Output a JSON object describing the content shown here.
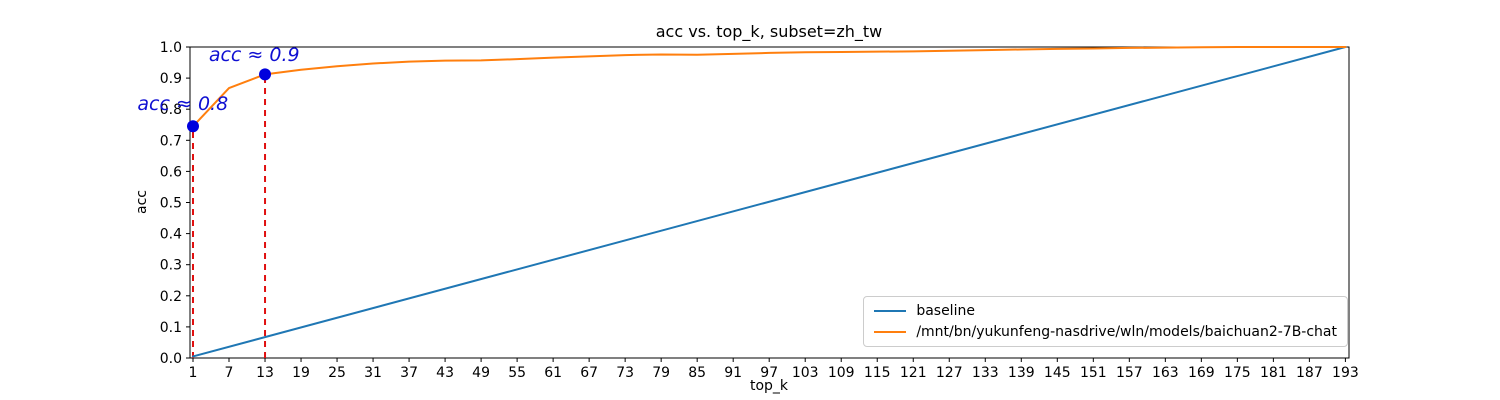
{
  "chart_data": {
    "type": "line",
    "title": "acc vs. top_k, subset=zh_tw",
    "xlabel": "top_k",
    "ylabel": "acc",
    "xlim": [
      0.5,
      193.6
    ],
    "ylim": [
      0.0,
      1.0
    ],
    "grid": false,
    "legend_position": "lower right",
    "xticks": [
      1,
      7,
      13,
      19,
      25,
      31,
      37,
      43,
      49,
      55,
      61,
      67,
      73,
      79,
      85,
      91,
      97,
      103,
      109,
      115,
      121,
      127,
      133,
      139,
      145,
      151,
      157,
      163,
      169,
      175,
      181,
      187,
      193
    ],
    "yticks": [
      0.0,
      0.1,
      0.2,
      0.3,
      0.4,
      0.5,
      0.6,
      0.7,
      0.8,
      0.9,
      1.0
    ],
    "series": [
      {
        "name": "baseline",
        "color": "#1f77b4",
        "x": [
          1,
          193
        ],
        "y": [
          0.005,
          1.0
        ]
      },
      {
        "name": "/mnt/bn/yukunfeng-nasdrive/wln/models/baichuan2-7B-chat",
        "color": "#ff7f0e",
        "x": [
          1,
          7,
          13,
          19,
          25,
          31,
          37,
          43,
          49,
          55,
          61,
          67,
          73,
          79,
          85,
          91,
          97,
          103,
          109,
          115,
          121,
          127,
          133,
          139,
          145,
          151,
          157,
          163,
          169,
          175,
          181,
          187,
          193
        ],
        "y": [
          0.745,
          0.868,
          0.912,
          0.927,
          0.938,
          0.947,
          0.953,
          0.956,
          0.957,
          0.961,
          0.966,
          0.97,
          0.974,
          0.976,
          0.975,
          0.978,
          0.981,
          0.983,
          0.984,
          0.985,
          0.986,
          0.988,
          0.99,
          0.992,
          0.994,
          0.995,
          0.997,
          0.998,
          0.999,
          1.0,
          1.0,
          1.0,
          1.0
        ]
      }
    ],
    "markers": {
      "color": "#0000dd",
      "points": [
        {
          "x": 1,
          "y": 0.745
        },
        {
          "x": 13,
          "y": 0.912
        }
      ]
    },
    "vlines": {
      "color": "#e01010",
      "style": "dashed",
      "lines": [
        {
          "x": 1,
          "y0": 0.0,
          "y1": 0.745
        },
        {
          "x": 13,
          "y0": 0.0,
          "y1": 0.912
        }
      ]
    },
    "annotations": [
      {
        "text": "acc ≈ 0.8",
        "x": -0.7,
        "y": 0.817,
        "color": "#0f0fd2"
      },
      {
        "text": "acc ≈ 0.9",
        "x": 11.2,
        "y": 0.974,
        "color": "#0f0fd2"
      }
    ]
  }
}
